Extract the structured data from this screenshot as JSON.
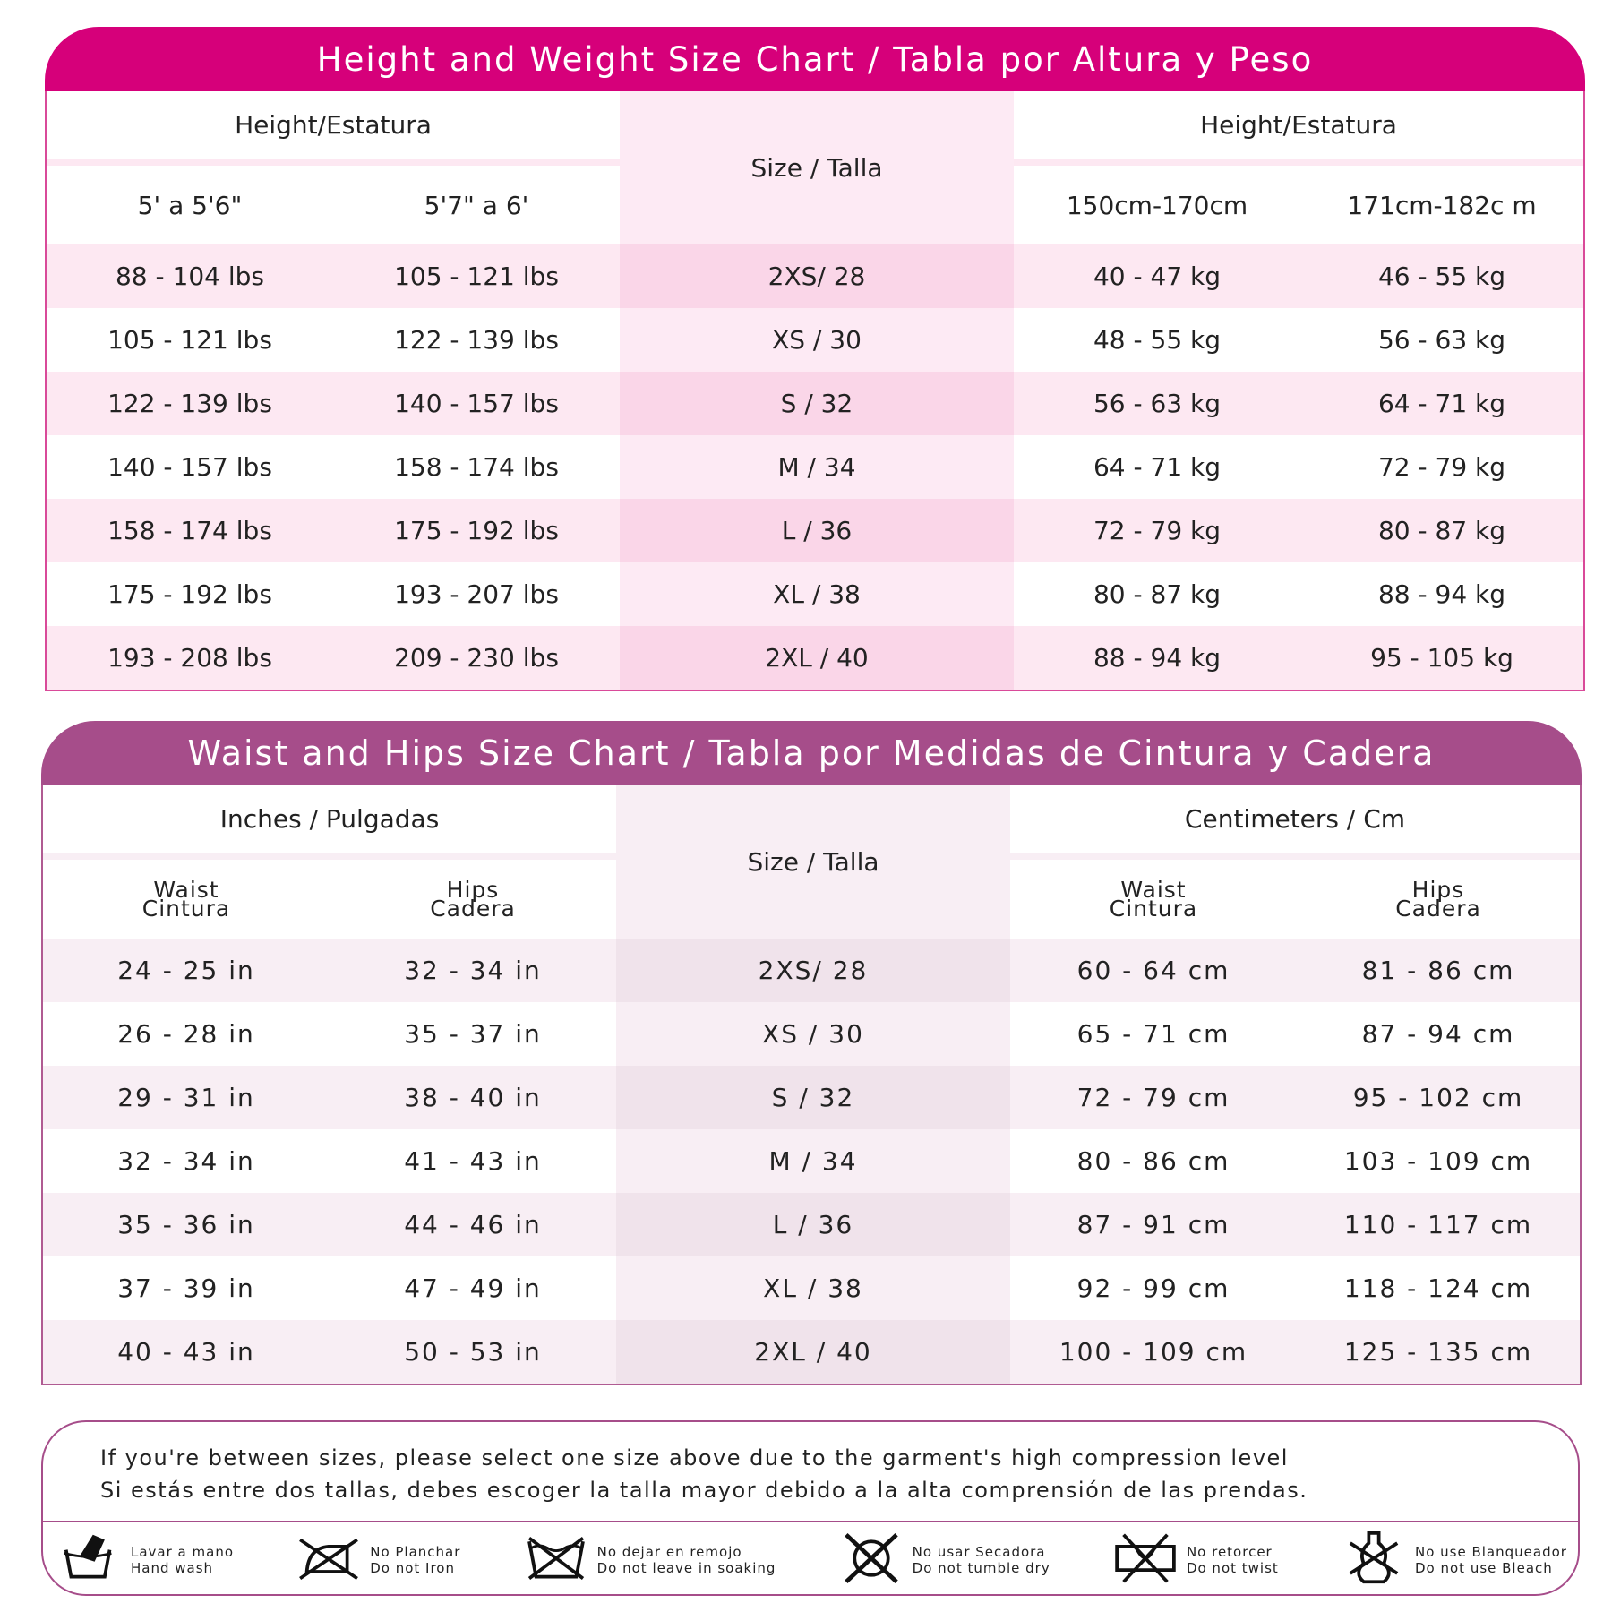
{
  "height_weight": {
    "title": "Height and Weight Size Chart / Tabla por Altura y Peso",
    "left_header": "Height/Estatura",
    "center_header": "Size / Talla",
    "right_header": "Height/Estatura",
    "subheaders": [
      "5' a 5'6\"",
      "5'7\" a 6'",
      "150cm-170cm",
      "171cm-182c m"
    ],
    "rows": [
      [
        "88 - 104 lbs",
        "105 - 121 lbs",
        "2XS/ 28",
        "40 - 47 kg",
        "46 - 55 kg"
      ],
      [
        "105 - 121 lbs",
        "122 - 139 lbs",
        "XS / 30",
        "48 - 55 kg",
        "56 - 63 kg"
      ],
      [
        "122 - 139 lbs",
        "140 - 157 lbs",
        "S / 32",
        "56 - 63 kg",
        "64 - 71 kg"
      ],
      [
        "140 - 157 lbs",
        "158 - 174 lbs",
        "M / 34",
        "64 - 71 kg",
        "72 - 79 kg"
      ],
      [
        "158 - 174 lbs",
        "175 - 192 lbs",
        "L / 36",
        "72 - 79 kg",
        "80 - 87 kg"
      ],
      [
        "175 - 192 lbs",
        "193 - 207 lbs",
        "XL / 38",
        "80 - 87 kg",
        "88 - 94 kg"
      ],
      [
        "193 - 208 lbs",
        "209 - 230 lbs",
        "2XL / 40",
        "88 - 94 kg",
        "95 - 105 kg"
      ]
    ],
    "colors": {
      "title_bg": "#d6007a",
      "row_alt": "#fde8f2",
      "center": "#fdeaf4",
      "center_alt": "#fad6e8"
    }
  },
  "waist_hips": {
    "title": "Waist and Hips Size Chart /  Tabla por Medidas de Cintura y Cadera",
    "left_header": "Inches / Pulgadas",
    "center_header": "Size / Talla",
    "right_header": "Centimeters / Cm",
    "subheaders": [
      {
        "en": "Waist",
        "es": "Cintura"
      },
      {
        "en": "Hips",
        "es": "Cadera"
      },
      {
        "en": "Waist",
        "es": "Cintura"
      },
      {
        "en": "Hips",
        "es": "Cadera"
      }
    ],
    "rows": [
      [
        "24 - 25 in",
        "32 - 34 in",
        "2XS/ 28",
        "60 - 64 cm",
        "81 - 86 cm"
      ],
      [
        "26 - 28 in",
        "35 - 37 in",
        "XS / 30",
        "65 - 71 cm",
        "87 - 94 cm"
      ],
      [
        "29 - 31 in",
        "38 - 40 in",
        "S / 32",
        "72 - 79 cm",
        "95 - 102 cm"
      ],
      [
        "32 - 34 in",
        "41 - 43 in",
        "M / 34",
        "80 - 86 cm",
        "103 - 109 cm"
      ],
      [
        "35 - 36 in",
        "44 - 46 in",
        "L / 36",
        "87 - 91 cm",
        "110 - 117 cm"
      ],
      [
        "37 - 39 in",
        "47 - 49 in",
        "XL / 38",
        "92 - 99 cm",
        "118 - 124 cm"
      ],
      [
        "40 - 43 in",
        "50 - 53 in",
        "2XL / 40",
        "100 - 109 cm",
        "125 - 135 cm"
      ]
    ],
    "colors": {
      "title_bg": "#a64d8a",
      "row_alt": "#f8eef4",
      "center": "#f8eef4",
      "center_alt": "#f0e3eb"
    }
  },
  "notes": {
    "english": "If you're between sizes, please select one size above due to the garment's high compression level",
    "spanish": "Si estás entre dos tallas, debes escoger la talla mayor debido a la alta comprensión de las prendas."
  },
  "care": [
    {
      "icon": "hand-wash-icon",
      "es": "Lavar a mano",
      "en": "Hand wash"
    },
    {
      "icon": "no-iron-icon",
      "es": "No Planchar",
      "en": "Do not Iron"
    },
    {
      "icon": "no-soak-icon",
      "es": "No dejar en remojo",
      "en": "Do not leave in soaking"
    },
    {
      "icon": "no-tumble-dry-icon",
      "es": "No usar Secadora",
      "en": "Do not tumble dry"
    },
    {
      "icon": "no-twist-icon",
      "es": "No retorcer",
      "en": "Do not twist"
    },
    {
      "icon": "no-bleach-icon",
      "es": "No use Blanqueador",
      "en": "Do not use Bleach"
    }
  ]
}
